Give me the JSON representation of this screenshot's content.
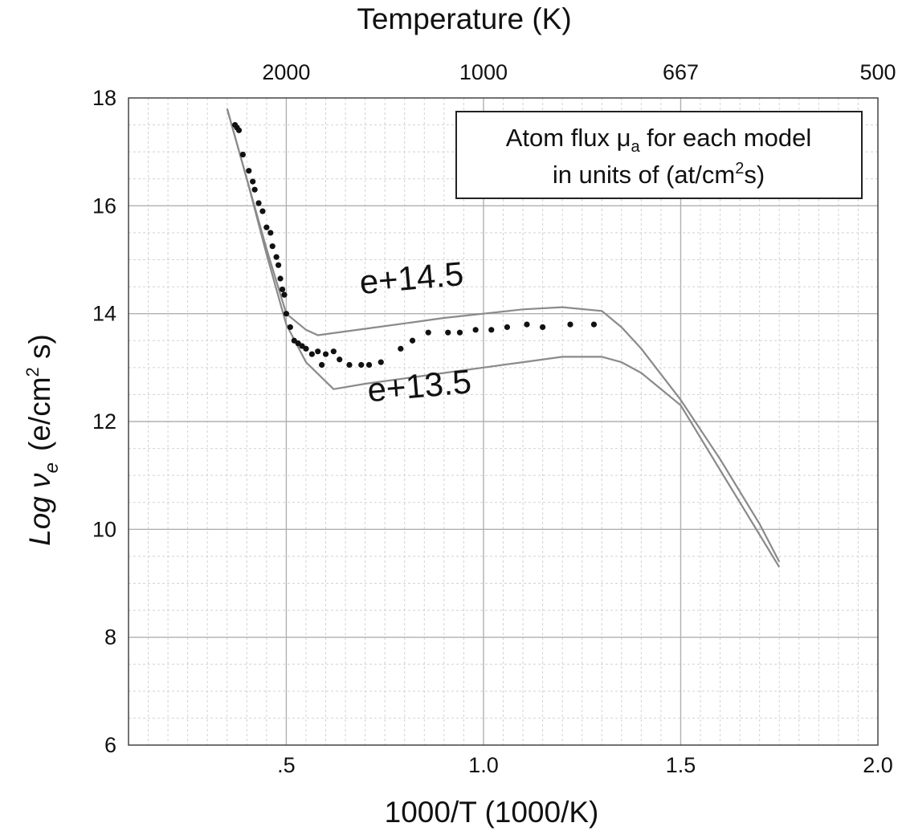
{
  "chart_data": {
    "type": "scatter",
    "xlabel": "1000/T  (1000/K)",
    "ylabel": "Log ν",
    "ylabel_subscript": "e",
    "ylabel_units_open": "(e/cm",
    "ylabel_units_sup": "2",
    "ylabel_units_close": " s)",
    "top_axis_label": "Temperature (K)",
    "xlim": [
      0.1,
      2.0
    ],
    "ylim": [
      6,
      18
    ],
    "grid": true,
    "x_ticks": [
      {
        "value": 0.5,
        "label": ".5"
      },
      {
        "value": 1.0,
        "label": "1.0"
      },
      {
        "value": 1.5,
        "label": "1.5"
      },
      {
        "value": 2.0,
        "label": "2.0"
      }
    ],
    "y_ticks": [
      {
        "value": 6,
        "label": "6"
      },
      {
        "value": 8,
        "label": "8"
      },
      {
        "value": 10,
        "label": "10"
      },
      {
        "value": 12,
        "label": "12"
      },
      {
        "value": 14,
        "label": "14"
      },
      {
        "value": 16,
        "label": "16"
      },
      {
        "value": 18,
        "label": "18"
      }
    ],
    "top_ticks": [
      {
        "value": 0.5,
        "label": "2000"
      },
      {
        "value": 1.0,
        "label": "1000"
      },
      {
        "value": 1.5,
        "label": "667"
      },
      {
        "value": 2.0,
        "label": "500"
      }
    ],
    "legend_box": {
      "line1_before": "Atom flux μ",
      "line1_sub": "a",
      "line1_after": " for each model",
      "line2_before": "in units of  (at/cm",
      "line2_sup": "2",
      "line2_after": "s)",
      "placement": "top-right"
    },
    "series": [
      {
        "name": "e+14.5",
        "kind": "line",
        "x": [
          0.35,
          0.4,
          0.45,
          0.5,
          0.55,
          0.58,
          0.7,
          0.8,
          0.9,
          1.0,
          1.1,
          1.2,
          1.3,
          1.35,
          1.4,
          1.5,
          1.6,
          1.7,
          1.75
        ],
        "y": [
          17.8,
          16.5,
          15.2,
          14.0,
          13.7,
          13.6,
          13.72,
          13.82,
          13.92,
          14.0,
          14.08,
          14.12,
          14.05,
          13.75,
          13.35,
          12.4,
          11.3,
          10.1,
          9.4
        ]
      },
      {
        "name": "e+13.5",
        "kind": "line",
        "x": [
          0.35,
          0.4,
          0.45,
          0.5,
          0.55,
          0.62,
          0.7,
          0.8,
          0.9,
          1.0,
          1.1,
          1.2,
          1.3,
          1.35,
          1.4,
          1.5,
          1.6,
          1.7,
          1.75
        ],
        "y": [
          17.8,
          16.5,
          15.1,
          13.8,
          13.1,
          12.6,
          12.7,
          12.8,
          12.9,
          13.0,
          13.1,
          13.2,
          13.2,
          13.1,
          12.9,
          12.3,
          11.1,
          9.9,
          9.3
        ]
      },
      {
        "name": "",
        "kind": "points",
        "x": [
          0.37,
          0.375,
          0.38,
          0.39,
          0.405,
          0.415,
          0.42,
          0.43,
          0.44,
          0.45,
          0.46,
          0.465,
          0.475,
          0.48,
          0.485,
          0.49,
          0.495,
          0.5,
          0.51,
          0.52,
          0.53,
          0.54,
          0.55,
          0.565,
          0.58,
          0.59,
          0.6,
          0.62,
          0.635,
          0.66,
          0.69,
          0.71,
          0.74,
          0.79,
          0.82,
          0.86,
          0.91,
          0.94,
          0.98,
          1.02,
          1.06,
          1.11,
          1.15,
          1.22,
          1.28
        ],
        "y": [
          17.5,
          17.45,
          17.4,
          16.95,
          16.65,
          16.45,
          16.3,
          16.05,
          15.9,
          15.6,
          15.5,
          15.25,
          15.05,
          14.9,
          14.65,
          14.45,
          14.35,
          14.0,
          13.75,
          13.5,
          13.45,
          13.4,
          13.35,
          13.25,
          13.3,
          13.05,
          13.25,
          13.3,
          13.15,
          13.05,
          13.05,
          13.05,
          13.1,
          13.35,
          13.5,
          13.65,
          13.65,
          13.65,
          13.7,
          13.7,
          13.75,
          13.8,
          13.75,
          13.8,
          13.8
        ]
      }
    ],
    "annotations": [
      {
        "text": "e+14.5",
        "x": 0.82,
        "y": 14.45,
        "rotation": -5
      },
      {
        "text": "e+13.5",
        "x": 0.84,
        "y": 12.45,
        "rotation": -5
      }
    ],
    "colors": {
      "lines": "#8a8a8a",
      "points": "#111111",
      "grid_major": "#b0b0b0",
      "grid_minor": "#d2d2d2"
    }
  }
}
